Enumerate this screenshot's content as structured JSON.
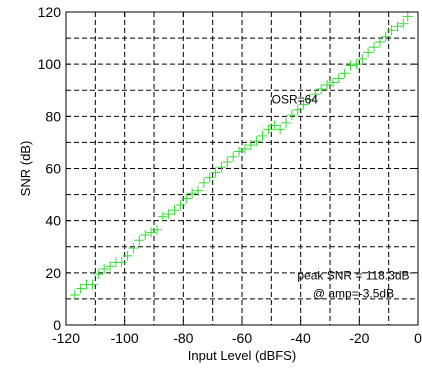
{
  "chart_data": {
    "type": "scatter",
    "xlabel": "Input Level (dBFS)",
    "ylabel": "SNR (dB)",
    "xlim": [
      -120,
      0
    ],
    "ylim": [
      0,
      120
    ],
    "xticks": [
      -120,
      -100,
      -80,
      -60,
      -40,
      -20,
      0
    ],
    "yticks": [
      0,
      20,
      40,
      60,
      80,
      100,
      120
    ],
    "grid": true,
    "grid_style": "dashed",
    "marker": "plus",
    "colors": {
      "marker": "#33dd33",
      "grid": "#000000",
      "axes": "#000000"
    },
    "series": [
      {
        "x": [
          -117,
          -115,
          -113,
          -111,
          -109,
          -107,
          -105,
          -103,
          -101,
          -99,
          -97,
          -95,
          -93,
          -91,
          -89,
          -87,
          -85,
          -83,
          -81,
          -79,
          -77,
          -75,
          -73,
          -71,
          -69,
          -67,
          -65,
          -63,
          -61,
          -59,
          -57,
          -55,
          -53,
          -51,
          -49,
          -47,
          -45,
          -43,
          -41,
          -39,
          -37,
          -35,
          -33,
          -31,
          -29,
          -27,
          -25,
          -23,
          -21,
          -19,
          -17,
          -15,
          -13,
          -11,
          -9,
          -7,
          -5,
          -3.5
        ],
        "y": [
          11.5,
          14,
          15.5,
          15.5,
          19.5,
          21.5,
          22.5,
          24,
          24,
          26.5,
          29.5,
          32.5,
          34.5,
          35.5,
          36.5,
          41.5,
          42.5,
          44,
          46,
          48.5,
          50.5,
          51.5,
          54.5,
          56.5,
          58.5,
          60.5,
          62.5,
          64.5,
          66.5,
          67.5,
          69,
          70.5,
          72.5,
          75,
          76.5,
          75,
          77.5,
          80.5,
          82.5,
          84.5,
          86.5,
          88.5,
          90.5,
          92,
          93,
          94.5,
          96.5,
          99.5,
          100,
          102,
          104.5,
          106.5,
          108.5,
          110.5,
          113,
          114.5,
          115.5,
          118.3
        ]
      }
    ],
    "annotations": [
      {
        "text": "OSR=64",
        "x": -42,
        "y": 85
      },
      {
        "text": "peak SNR = 118.3dB",
        "x": -22,
        "y": 17.5
      },
      {
        "text": "@ amp=-3.5dB",
        "x": -22,
        "y": 10.5
      }
    ]
  }
}
